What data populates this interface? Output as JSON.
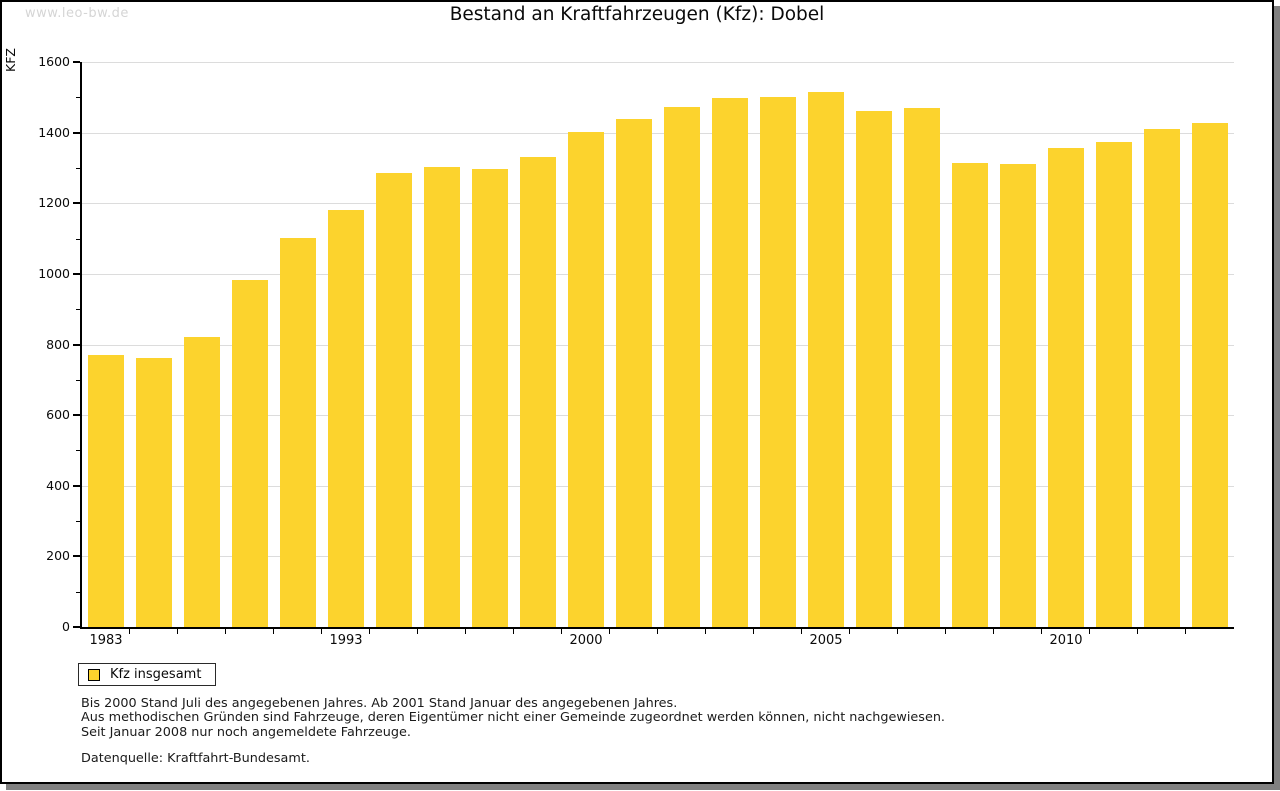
{
  "watermark": "www.leo-bw.de",
  "chart_data": {
    "type": "bar",
    "title": "Bestand an Kraftfahrzeugen (Kfz): Dobel",
    "xlabel": "",
    "ylabel": "KFZ",
    "ylim": [
      0,
      1600
    ],
    "y_ticks": [
      0,
      200,
      400,
      600,
      800,
      1000,
      1200,
      1400,
      1600
    ],
    "y_minor_ticks": [
      100,
      300,
      500,
      700,
      900,
      1100,
      1300,
      1500
    ],
    "grid": true,
    "bar_count": 24,
    "values": [
      770,
      762,
      822,
      982,
      1103,
      1182,
      1285,
      1303,
      1297,
      1331,
      1402,
      1438,
      1472,
      1499,
      1502,
      1515,
      1461,
      1470,
      1315,
      1312,
      1357,
      1374,
      1409,
      1428
    ],
    "x_tick_labels": [
      {
        "label": "1983",
        "bar_index": 0
      },
      {
        "label": "1993",
        "bar_index": 5
      },
      {
        "label": "2000",
        "bar_index": 10
      },
      {
        "label": "2005",
        "bar_index": 15
      },
      {
        "label": "2010",
        "bar_index": 20
      }
    ],
    "legend": [
      "Kfz insgesamt"
    ],
    "legend_position": "bottom-left",
    "colors": {
      "bar": "#fcd32d",
      "grid": "#dcdcdc",
      "axis": "#000000",
      "watermark": "#d5d5d5",
      "frame_shadow": "#808080"
    }
  },
  "footnotes": {
    "lines": [
      "Bis 2000 Stand Juli des angegebenen Jahres. Ab 2001 Stand Januar des angegebenen Jahres.",
      "Aus methodischen Gründen sind Fahrzeuge, deren Eigentümer nicht einer Gemeinde zugeordnet werden können, nicht nachgewiesen.",
      "Seit Januar 2008 nur noch angemeldete Fahrzeuge."
    ],
    "source": "Datenquelle: Kraftfahrt-Bundesamt."
  }
}
